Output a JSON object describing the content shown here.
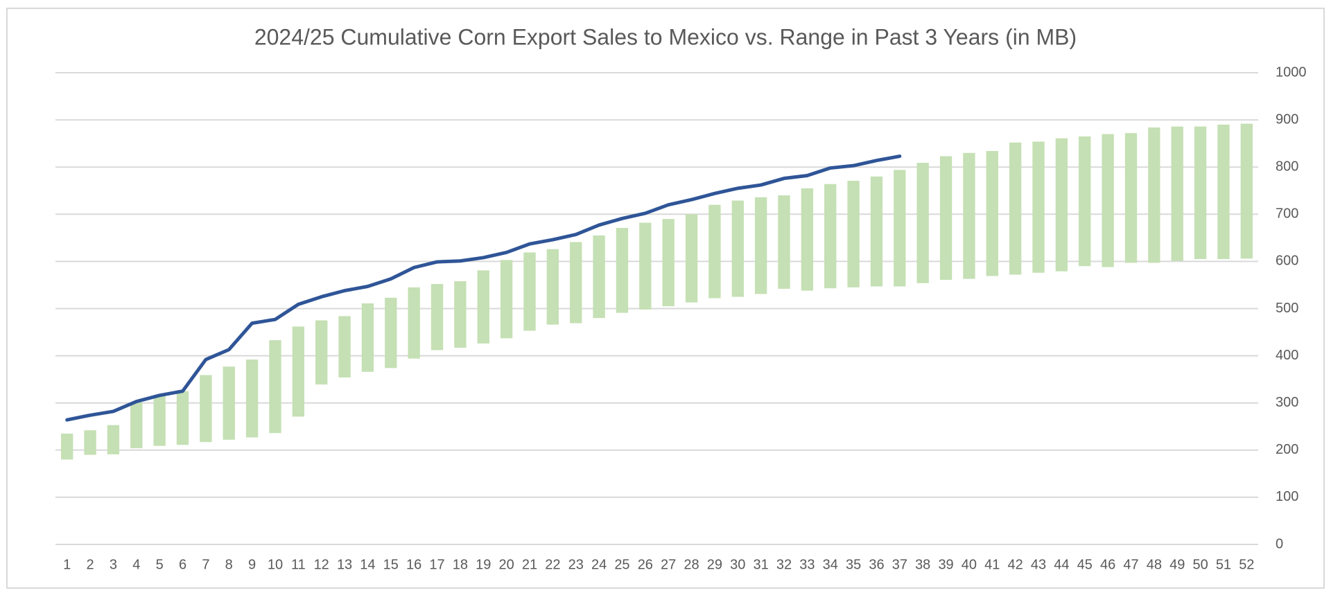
{
  "chart_data": {
    "type": "combo",
    "title": "2024/25 Cumulative Corn Export Sales to Mexico vs. Range in Past 3 Years (in MB)",
    "categories": [
      1,
      2,
      3,
      4,
      5,
      6,
      7,
      8,
      9,
      10,
      11,
      12,
      13,
      14,
      15,
      16,
      17,
      18,
      19,
      20,
      21,
      22,
      23,
      24,
      25,
      26,
      27,
      28,
      29,
      30,
      31,
      32,
      33,
      34,
      35,
      36,
      37,
      38,
      39,
      40,
      41,
      42,
      43,
      44,
      45,
      46,
      47,
      48,
      49,
      50,
      51,
      52
    ],
    "range": {
      "color": "#c5e0b4",
      "low": [
        180,
        190,
        191,
        204,
        209,
        211,
        217,
        222,
        227,
        236,
        271,
        339,
        354,
        366,
        374,
        394,
        412,
        417,
        426,
        437,
        453,
        466,
        469,
        480,
        491,
        498,
        505,
        513,
        522,
        525,
        531,
        542,
        538,
        543,
        545,
        547,
        547,
        554,
        561,
        563,
        569,
        572,
        576,
        579,
        590,
        588,
        597,
        597,
        601,
        605,
        605,
        606
      ],
      "high": [
        235,
        242,
        253,
        301,
        316,
        325,
        359,
        377,
        392,
        433,
        462,
        475,
        484,
        511,
        523,
        545,
        552,
        558,
        581,
        603,
        619,
        626,
        641,
        655,
        671,
        682,
        690,
        700,
        720,
        729,
        736,
        740,
        755,
        764,
        771,
        780,
        794,
        809,
        823,
        830,
        834,
        852,
        854,
        861,
        865,
        870,
        872,
        884,
        886,
        886,
        890,
        892
      ]
    },
    "line": {
      "color": "#2f5597",
      "values": [
        264,
        274,
        282,
        303,
        316,
        325,
        392,
        413,
        469,
        477,
        509,
        525,
        538,
        547,
        563,
        587,
        599,
        601,
        608,
        619,
        637,
        646,
        657,
        677,
        691,
        702,
        720,
        731,
        744,
        755,
        762,
        776,
        782,
        798,
        803,
        814,
        823,
        null,
        null,
        null,
        null,
        null,
        null,
        null,
        null,
        null,
        null,
        null,
        null,
        null,
        null,
        null
      ]
    },
    "ylim": [
      0,
      1000
    ],
    "yticks": [
      0,
      100,
      200,
      300,
      400,
      500,
      600,
      700,
      800,
      900,
      1000
    ],
    "grid": true,
    "y_axis_side": "right"
  }
}
